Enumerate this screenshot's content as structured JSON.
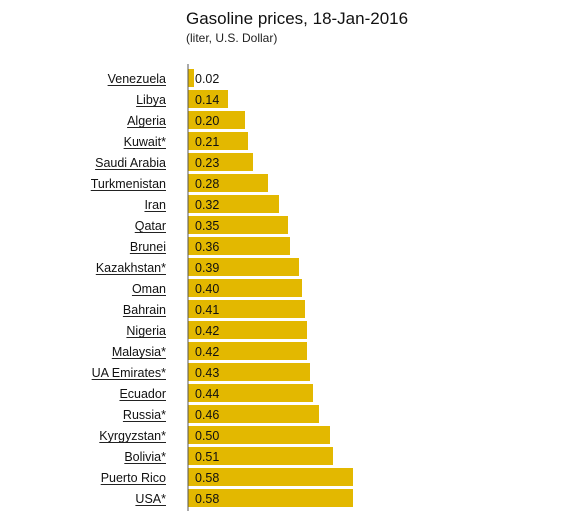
{
  "chart_data": {
    "type": "bar",
    "orientation": "horizontal",
    "title": "Gasoline prices, 18-Jan-2016",
    "subtitle": "(liter, U.S. Dollar)",
    "categories": [
      "Venezuela",
      "Libya",
      "Algeria",
      "Kuwait*",
      "Saudi Arabia",
      "Turkmenistan",
      "Iran",
      "Qatar",
      "Brunei",
      "Kazakhstan*",
      "Oman",
      "Bahrain",
      "Nigeria",
      "Malaysia*",
      "UA Emirates*",
      "Ecuador",
      "Russia*",
      "Kyrgyzstan*",
      "Bolivia*",
      "Puerto Rico",
      "USA*"
    ],
    "values": [
      0.02,
      0.14,
      0.2,
      0.21,
      0.23,
      0.28,
      0.32,
      0.35,
      0.36,
      0.39,
      0.4,
      0.41,
      0.42,
      0.42,
      0.43,
      0.44,
      0.46,
      0.5,
      0.51,
      0.58,
      0.58
    ],
    "value_labels": [
      "0.02",
      "0.14",
      "0.20",
      "0.21",
      "0.23",
      "0.28",
      "0.32",
      "0.35",
      "0.36",
      "0.39",
      "0.40",
      "0.41",
      "0.42",
      "0.42",
      "0.43",
      "0.44",
      "0.46",
      "0.50",
      "0.51",
      "0.58",
      "0.58"
    ],
    "bar_color": "#e3b800",
    "grid": false,
    "legend": "none",
    "category_labels_underlined": true
  }
}
